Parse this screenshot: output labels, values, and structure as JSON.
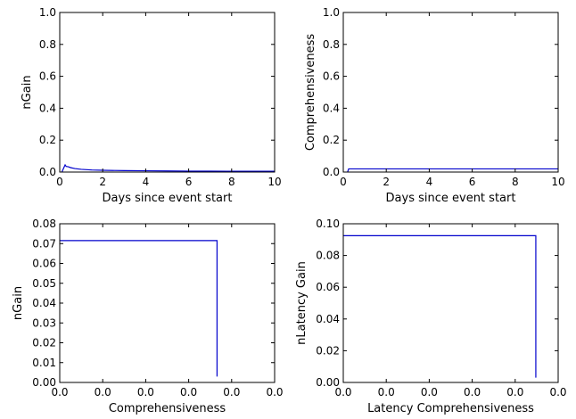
{
  "chart_data": [
    {
      "type": "line",
      "xlabel": "Days since event start",
      "ylabel": "nGain",
      "xlim": [
        0,
        10
      ],
      "ylim": [
        0,
        1.0
      ],
      "x_ticks": [
        "0",
        "2",
        "4",
        "6",
        "8",
        "10"
      ],
      "y_ticks": [
        "0.0",
        "0.2",
        "0.4",
        "0.6",
        "0.8",
        "1.0"
      ],
      "series": [
        {
          "x": [
            0.1,
            0.2,
            0.25,
            0.3,
            0.4,
            0.5,
            0.7,
            1.0,
            1.5,
            2,
            3,
            4,
            5,
            6,
            7,
            8,
            9,
            10
          ],
          "y": [
            0.0,
            0.03,
            0.045,
            0.035,
            0.033,
            0.028,
            0.022,
            0.017,
            0.013,
            0.011,
            0.009,
            0.008,
            0.007,
            0.006,
            0.006,
            0.005,
            0.005,
            0.005
          ]
        }
      ],
      "color": "#0000cc"
    },
    {
      "type": "line",
      "xlabel": "Days since event start",
      "ylabel": "Comprehensiveness",
      "xlim": [
        0,
        10
      ],
      "ylim": [
        0,
        1.0
      ],
      "x_ticks": [
        "0",
        "2",
        "4",
        "6",
        "8",
        "10"
      ],
      "y_ticks": [
        "0.0",
        "0.2",
        "0.4",
        "0.6",
        "0.8",
        "1.0"
      ],
      "series": [
        {
          "x": [
            0.2,
            0.25,
            10
          ],
          "y": [
            0.0,
            0.02,
            0.02
          ]
        }
      ],
      "color": "#0000cc"
    },
    {
      "type": "line",
      "xlabel": "Comprehensiveness",
      "ylabel": "nGain",
      "xlim": [
        0,
        0.025
      ],
      "ylim": [
        0,
        0.08
      ],
      "x_ticks": [
        "0.0",
        "0.0",
        "0.0",
        "0.0",
        "0.0",
        "0.0"
      ],
      "y_ticks": [
        "0.00",
        "0.01",
        "0.02",
        "0.03",
        "0.04",
        "0.05",
        "0.06",
        "0.07",
        "0.08"
      ],
      "series": [
        {
          "x": [
            0.0,
            0.0183,
            0.0183
          ],
          "y": [
            0.0715,
            0.0715,
            0.003
          ]
        }
      ],
      "color": "#0000cc"
    },
    {
      "type": "line",
      "xlabel": "Latency Comprehensiveness",
      "ylabel": "nLatency Gain",
      "xlim": [
        0,
        0.025
      ],
      "ylim": [
        0,
        0.1
      ],
      "x_ticks": [
        "0.0",
        "0.0",
        "0.0",
        "0.0",
        "0.0",
        "0.0"
      ],
      "y_ticks": [
        "0.00",
        "0.02",
        "0.04",
        "0.06",
        "0.08",
        "0.10"
      ],
      "series": [
        {
          "x": [
            0.0,
            0.0224,
            0.0224
          ],
          "y": [
            0.0925,
            0.0925,
            0.003
          ]
        }
      ],
      "color": "#0000cc"
    }
  ]
}
